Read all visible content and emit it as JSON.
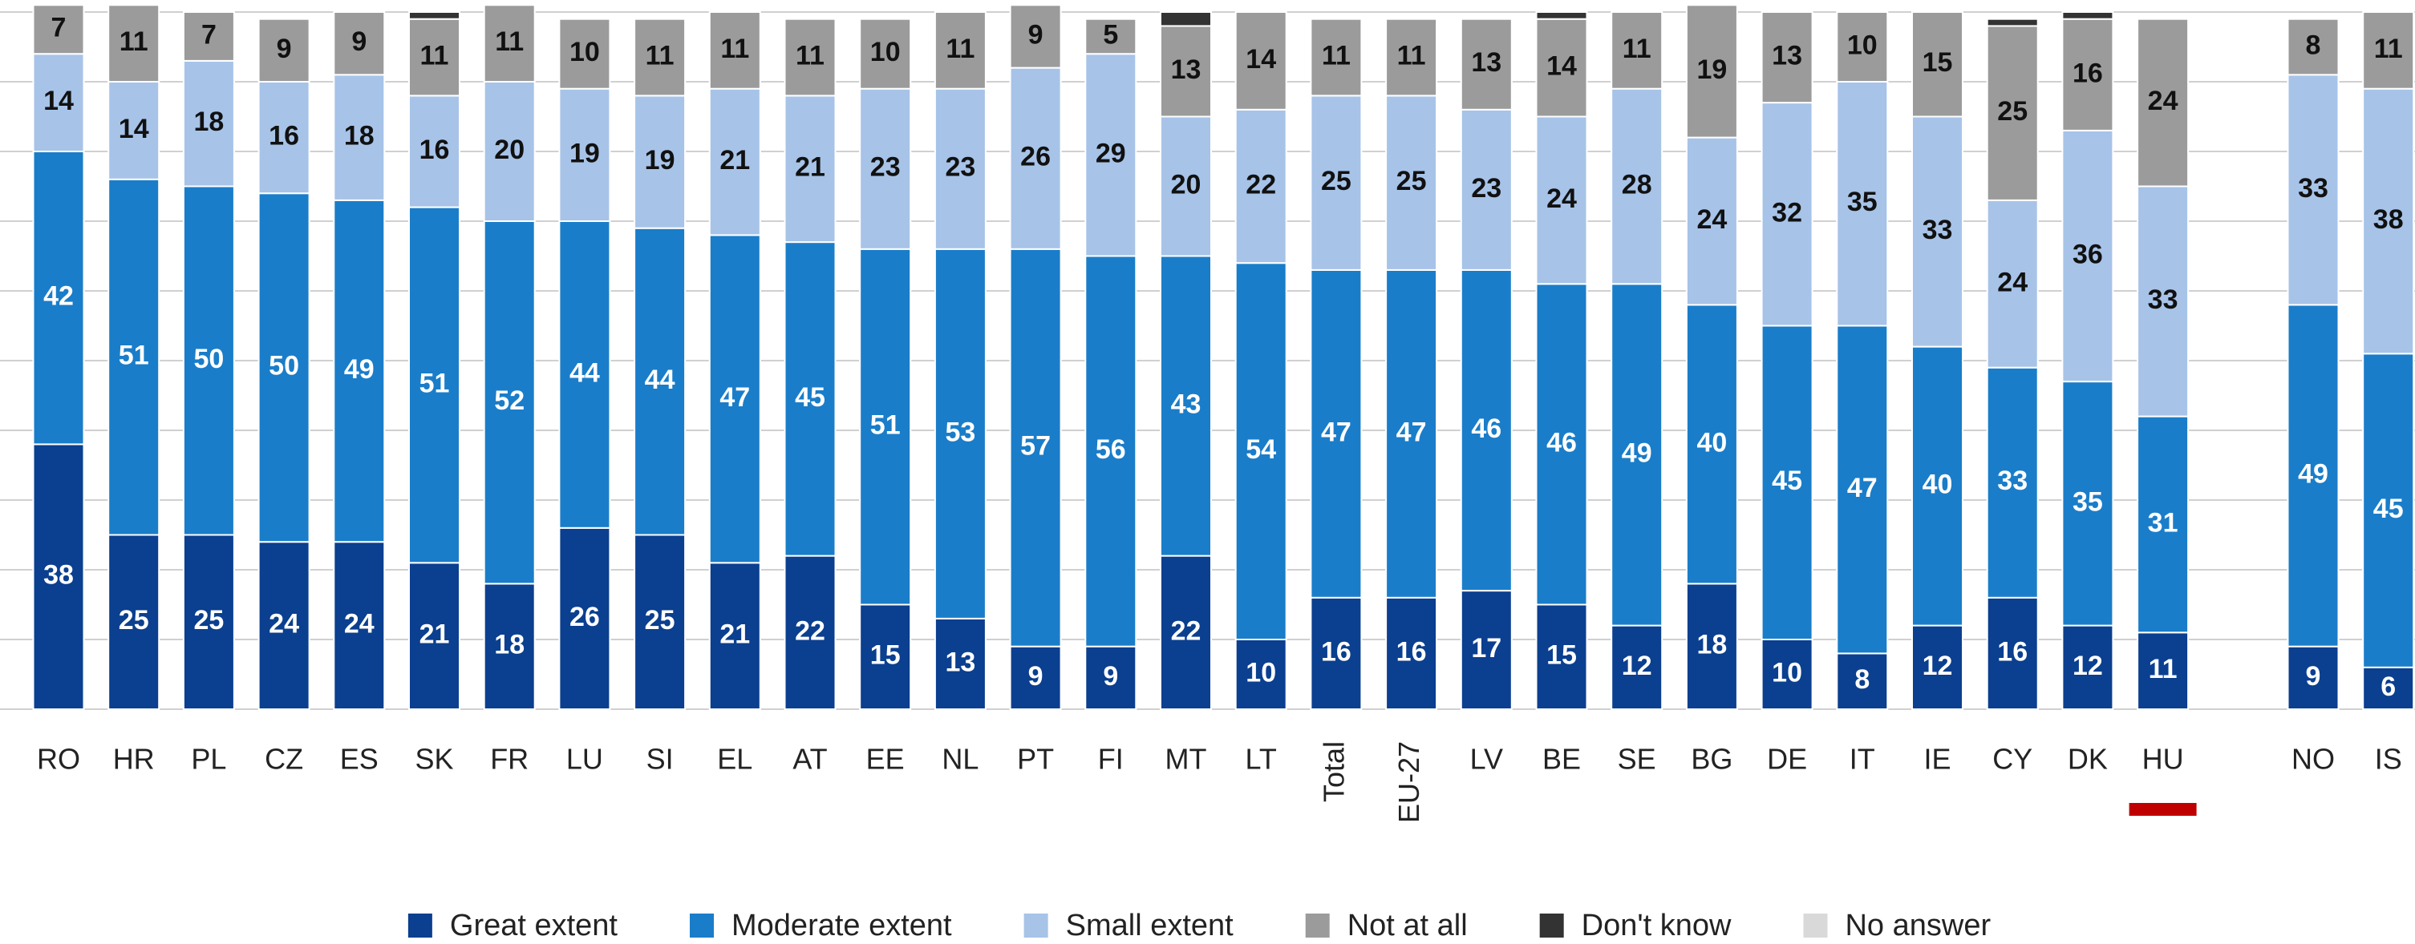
{
  "chart_data": {
    "type": "stacked_bar",
    "categories": [
      "RO",
      "HR",
      "PL",
      "CZ",
      "ES",
      "SK",
      "FR",
      "LU",
      "SI",
      "EL",
      "AT",
      "EE",
      "NL",
      "PT",
      "FI",
      "MT",
      "LT",
      "Total",
      "EU-27",
      "LV",
      "BE",
      "SE",
      "BG",
      "DE",
      "IT",
      "IE",
      "CY",
      "DK",
      "HU",
      null,
      "NO",
      "IS"
    ],
    "series": [
      {
        "name": "Great extent",
        "color": "#0b3f8f",
        "values": [
          38,
          25,
          25,
          24,
          24,
          21,
          18,
          26,
          25,
          21,
          22,
          15,
          13,
          9,
          9,
          22,
          10,
          16,
          16,
          17,
          15,
          12,
          18,
          10,
          8,
          12,
          16,
          12,
          11,
          null,
          9,
          6
        ]
      },
      {
        "name": "Moderate extent",
        "color": "#1a7dc9",
        "values": [
          42,
          51,
          50,
          50,
          49,
          51,
          52,
          44,
          44,
          47,
          45,
          51,
          53,
          57,
          56,
          43,
          54,
          47,
          47,
          46,
          46,
          49,
          40,
          45,
          47,
          40,
          33,
          35,
          31,
          null,
          49,
          45
        ]
      },
      {
        "name": "Small extent",
        "color": "#a7c3e8",
        "values": [
          14,
          14,
          18,
          16,
          18,
          16,
          20,
          19,
          19,
          21,
          21,
          23,
          23,
          26,
          29,
          20,
          22,
          25,
          25,
          23,
          24,
          28,
          24,
          32,
          35,
          33,
          24,
          36,
          33,
          null,
          33,
          38
        ]
      },
      {
        "name": "Not at all",
        "color": "#9b9b9b",
        "values": [
          7,
          11,
          7,
          9,
          9,
          11,
          11,
          10,
          11,
          11,
          11,
          10,
          11,
          9,
          5,
          13,
          14,
          11,
          11,
          13,
          14,
          11,
          19,
          13,
          10,
          15,
          25,
          16,
          24,
          null,
          8,
          11
        ]
      },
      {
        "name": "Don't know",
        "color": "#333333",
        "values": [
          0,
          0,
          0,
          0,
          0,
          1,
          0,
          0,
          0,
          0,
          0,
          0,
          0,
          0,
          0,
          2,
          0,
          0,
          0,
          0,
          1,
          0,
          0,
          0,
          0,
          0,
          1,
          1,
          0,
          null,
          0,
          0
        ]
      },
      {
        "name": "No answer",
        "color": "#d9d9d9",
        "values": [
          0,
          0,
          0,
          0,
          0,
          0,
          0,
          0,
          0,
          0,
          0,
          0,
          0,
          0,
          0,
          0,
          0,
          0,
          0,
          0,
          0,
          0,
          0,
          0,
          0,
          0,
          0,
          0,
          0,
          null,
          0,
          0
        ]
      }
    ],
    "ylim": [
      0,
      100
    ],
    "yticks": [
      0,
      10,
      20,
      30,
      40,
      50,
      60,
      70,
      80,
      90,
      100
    ],
    "grid": true
  }
}
